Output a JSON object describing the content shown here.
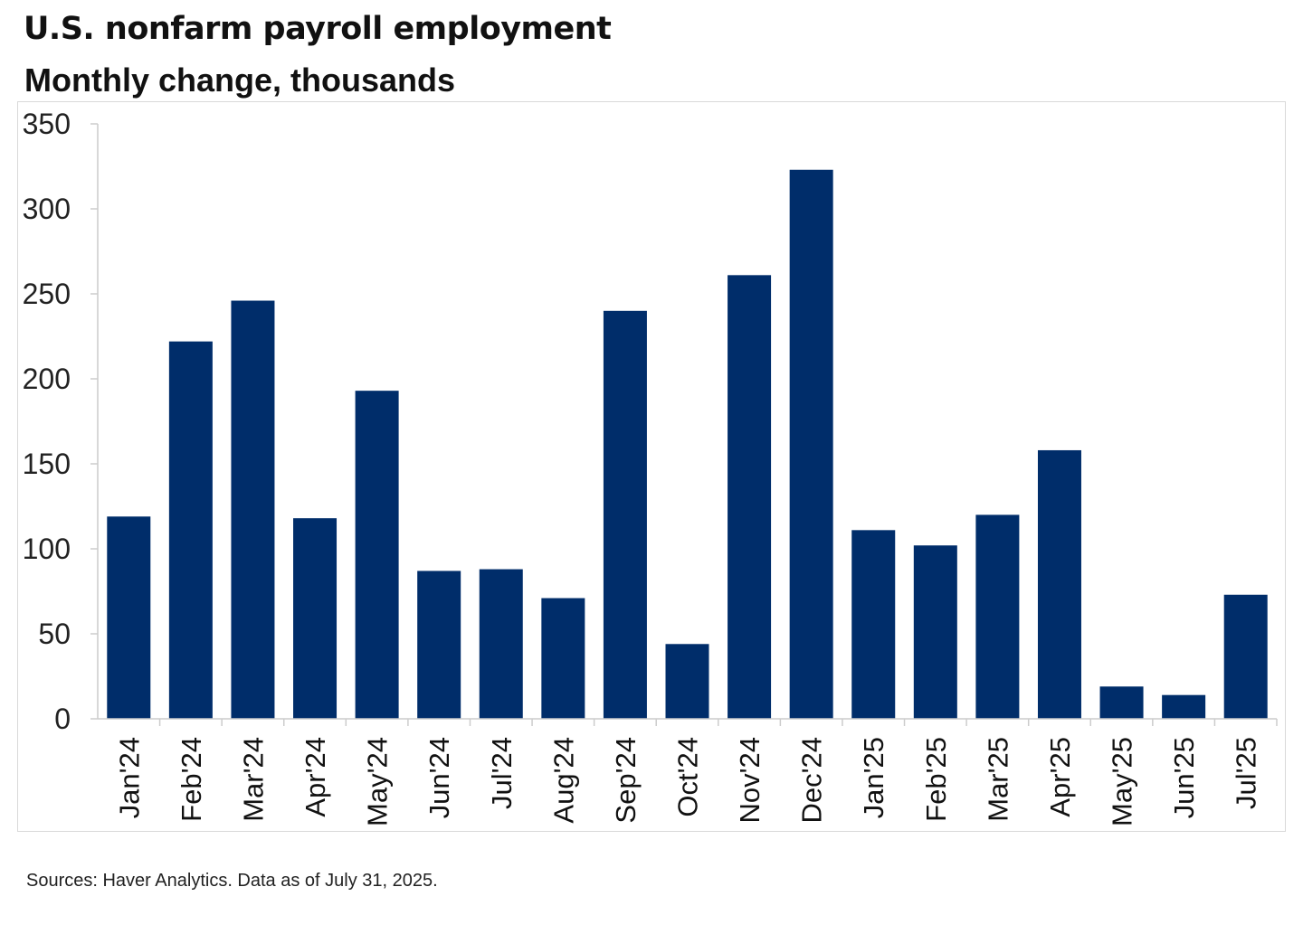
{
  "title": "U.S. nonfarm payroll employment",
  "subtitle": "Monthly change, thousands",
  "source": "Sources: Haver Analytics. Data as of July 31, 2025.",
  "colors": {
    "bar": "#002d6a",
    "axis": "#cccccc"
  },
  "chart_data": {
    "type": "bar",
    "title": "U.S. nonfarm payroll employment",
    "subtitle": "Monthly change, thousands",
    "xlabel": "",
    "ylabel": "",
    "categories": [
      "Jan'24",
      "Feb'24",
      "Mar'24",
      "Apr'24",
      "May'24",
      "Jun'24",
      "Jul'24",
      "Aug'24",
      "Sep'24",
      "Oct'24",
      "Nov'24",
      "Dec'24",
      "Jan'25",
      "Feb'25",
      "Mar'25",
      "Apr'25",
      "May'25",
      "Jun'25",
      "Jul'25"
    ],
    "values": [
      119,
      222,
      246,
      118,
      193,
      87,
      88,
      71,
      240,
      44,
      261,
      323,
      111,
      102,
      120,
      158,
      19,
      14,
      73
    ],
    "ylim": [
      0,
      350
    ],
    "yticks": [
      "0",
      "50",
      "100",
      "150",
      "200",
      "250",
      "300",
      "350"
    ],
    "grid": false,
    "legend": "none"
  }
}
